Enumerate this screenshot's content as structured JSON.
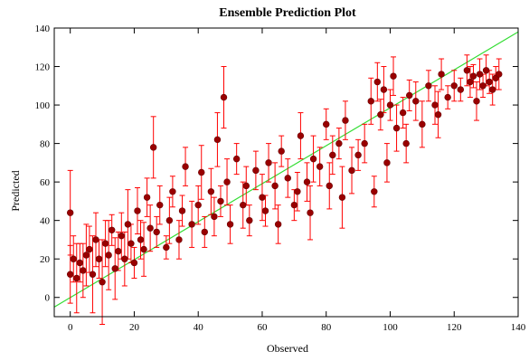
{
  "chart_data": {
    "type": "scatter",
    "title": "Ensemble Prediction Plot",
    "xlabel": "Observed",
    "ylabel": "Predicted",
    "xlim": [
      -5,
      140
    ],
    "ylim": [
      -10,
      140
    ],
    "x_ticks": [
      0,
      20,
      40,
      60,
      80,
      100,
      120,
      140
    ],
    "y_ticks": [
      0,
      20,
      40,
      60,
      80,
      100,
      120,
      140
    ],
    "grid": false,
    "reference_line": {
      "x": [
        -5,
        140
      ],
      "y": [
        -5,
        138
      ],
      "color": "#33dd33"
    },
    "colors": {
      "point": "#990000",
      "point_edge": "#6b0000",
      "error_bar": "#ff0000",
      "frame": "#000000"
    },
    "series": [
      {
        "x": [
          0,
          0,
          1,
          2,
          3,
          4,
          5,
          6,
          7,
          8,
          9,
          10,
          11,
          12,
          13,
          14,
          15,
          16,
          17,
          18,
          19,
          20,
          21,
          22,
          23,
          24,
          25,
          26,
          27,
          28,
          30,
          31,
          32,
          34,
          35,
          36,
          38,
          40,
          41,
          42,
          44,
          45,
          46,
          47,
          48,
          49,
          50,
          52,
          54,
          55,
          56,
          58,
          60,
          61,
          62,
          64,
          65,
          66,
          68,
          70,
          71,
          72,
          74,
          75,
          76,
          78,
          80,
          81,
          82,
          84,
          85,
          86,
          88,
          90,
          92,
          94,
          95,
          96,
          97,
          98,
          99,
          100,
          101,
          102,
          104,
          105,
          106,
          108,
          110,
          112,
          114,
          115,
          116,
          118,
          120,
          122,
          124,
          125,
          126,
          127,
          128,
          129,
          130,
          131,
          132,
          133,
          134
        ],
        "y": [
          44,
          12,
          20,
          10,
          18,
          14,
          22,
          25,
          12,
          30,
          20,
          8,
          28,
          22,
          35,
          15,
          24,
          32,
          20,
          38,
          28,
          18,
          45,
          30,
          25,
          52,
          36,
          78,
          34,
          48,
          26,
          40,
          55,
          30,
          45,
          68,
          38,
          48,
          65,
          34,
          55,
          42,
          82,
          50,
          104,
          60,
          38,
          72,
          48,
          58,
          40,
          66,
          52,
          45,
          70,
          58,
          38,
          76,
          62,
          48,
          55,
          84,
          60,
          44,
          72,
          68,
          90,
          58,
          74,
          80,
          52,
          92,
          66,
          74,
          80,
          102,
          55,
          112,
          95,
          108,
          70,
          100,
          115,
          88,
          96,
          80,
          105,
          102,
          90,
          110,
          100,
          95,
          116,
          104,
          110,
          108,
          118,
          112,
          115,
          102,
          116,
          110,
          118,
          112,
          108,
          114,
          116
        ],
        "error": [
          22,
          15,
          12,
          18,
          10,
          14,
          16,
          12,
          20,
          14,
          10,
          22,
          12,
          18,
          8,
          16,
          10,
          12,
          14,
          18,
          10,
          8,
          12,
          10,
          14,
          10,
          12,
          16,
          8,
          10,
          6,
          12,
          8,
          10,
          8,
          10,
          12,
          10,
          14,
          8,
          12,
          10,
          14,
          8,
          16,
          12,
          10,
          8,
          12,
          10,
          8,
          10,
          12,
          8,
          10,
          12,
          10,
          8,
          10,
          8,
          10,
          12,
          10,
          14,
          12,
          10,
          8,
          12,
          10,
          8,
          16,
          10,
          12,
          8,
          10,
          12,
          8,
          10,
          8,
          12,
          10,
          8,
          10,
          12,
          8,
          10,
          8,
          10,
          12,
          8,
          10,
          12,
          8,
          6,
          8,
          6,
          8,
          8,
          6,
          10,
          8,
          6,
          8,
          6,
          8,
          6,
          8
        ]
      }
    ]
  }
}
